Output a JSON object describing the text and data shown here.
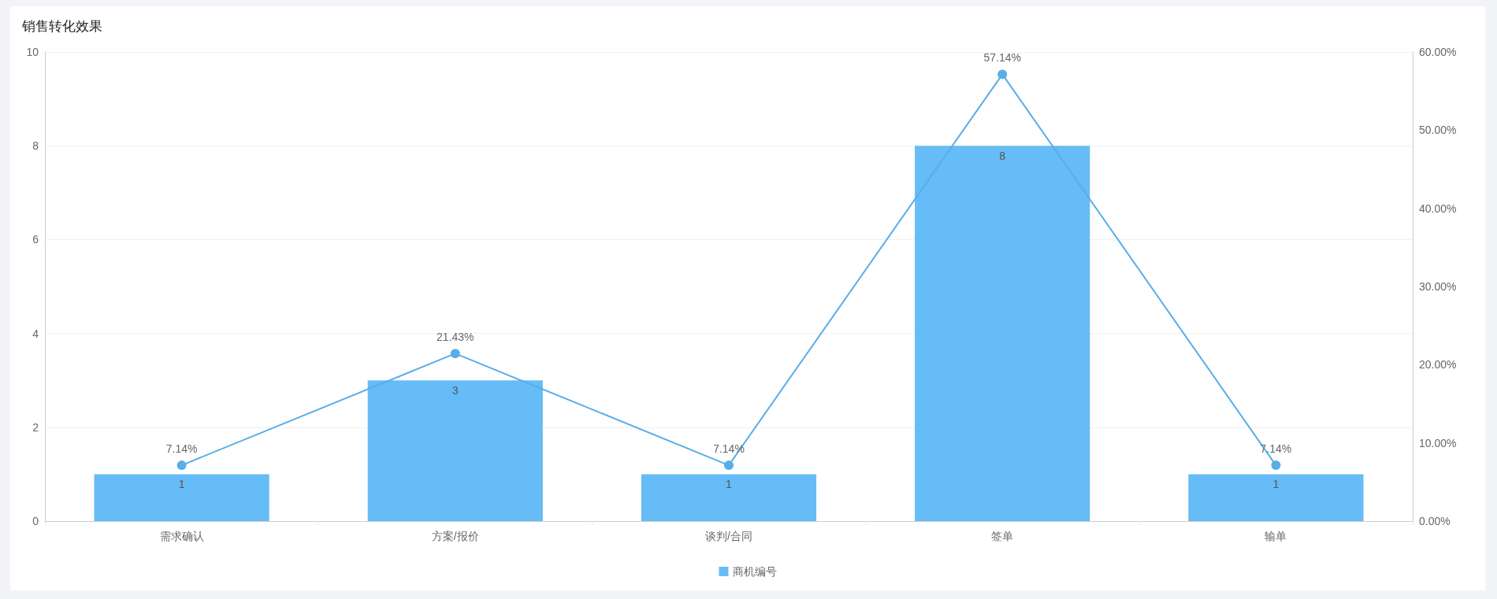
{
  "chart_data": {
    "type": "bar",
    "title": "销售转化效果",
    "categories": [
      "需求确认",
      "方案/报价",
      "谈判/合同",
      "签单",
      "输单"
    ],
    "series": [
      {
        "name": "商机编号",
        "type": "bar",
        "color": "#66bcf6",
        "values": [
          1,
          3,
          1,
          8,
          1
        ]
      },
      {
        "type": "line",
        "axis": "y2",
        "color": "#5aade8",
        "values": [
          7.14,
          21.43,
          7.14,
          57.14,
          7.14
        ],
        "value_labels": [
          "7.14%",
          "21.43%",
          "7.14%",
          "57.14%",
          "7.14%"
        ]
      }
    ],
    "data_labels": true,
    "ylim": [
      0,
      10
    ],
    "yticks": [
      0,
      2,
      4,
      6,
      8,
      10
    ],
    "y2lim": [
      0,
      60
    ],
    "y2ticks": [
      {
        "value": 0,
        "label": "0.00%"
      },
      {
        "value": 10,
        "label": "10.00%"
      },
      {
        "value": 20,
        "label": "20.00%"
      },
      {
        "value": 30,
        "label": "30.00%"
      },
      {
        "value": 40,
        "label": "40.00%"
      },
      {
        "value": 50,
        "label": "50.00%"
      },
      {
        "value": 60,
        "label": "60.00%"
      }
    ],
    "grid": "y",
    "legend": "bottom",
    "marker": "circle",
    "line_style": "solid"
  }
}
